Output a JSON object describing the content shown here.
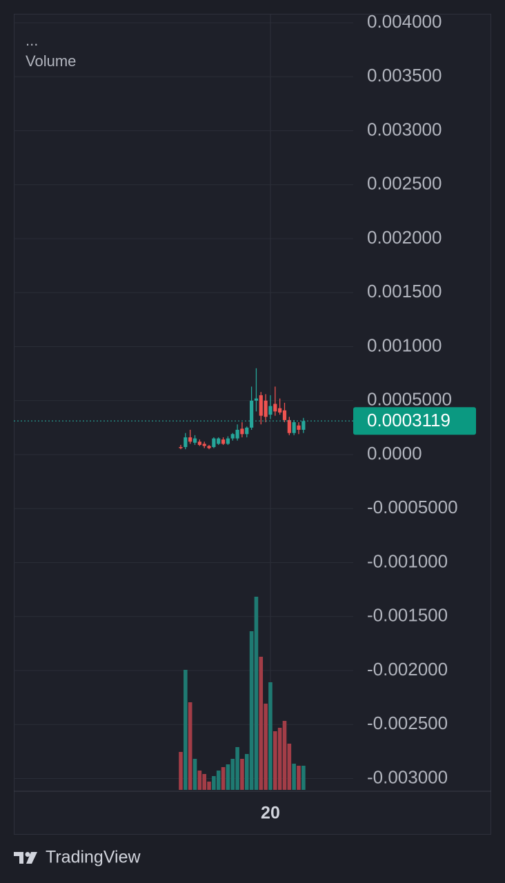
{
  "chart_data": {
    "type": "candlestick",
    "indicator_menu": "...",
    "indicator": "Volume",
    "brand": "TradingView",
    "categories": [
      null,
      null,
      null,
      null,
      null,
      null,
      null,
      null,
      null,
      null,
      null,
      null,
      null,
      null,
      null,
      null,
      null,
      null,
      null,
      "20",
      null,
      null,
      null,
      null,
      null,
      null,
      null
    ],
    "open": [
      7e-05,
      7e-05,
      0.00016,
      0.00011,
      0.00012,
      0.0001,
      8e-05,
      7e-05,
      0.0001,
      0.00014,
      0.0001,
      0.00015,
      0.00015,
      0.00024,
      0.00019,
      0.00025,
      0.0005,
      0.00055,
      0.0005,
      0.00037,
      0.00047,
      0.00043,
      0.00041,
      0.00032,
      0.0002,
      0.00027,
      0.00023
    ],
    "high": [
      9e-05,
      0.0002,
      0.00023,
      0.00018,
      0.00014,
      0.00012,
      9e-05,
      0.00016,
      0.00016,
      0.00016,
      0.00017,
      0.0002,
      0.00028,
      0.0003,
      0.00026,
      0.00063,
      0.0008,
      0.00058,
      0.00056,
      0.00055,
      0.00063,
      0.00052,
      0.00048,
      0.00035,
      0.00032,
      0.0003,
      0.00034
    ],
    "low": [
      5e-05,
      5e-05,
      0.0001,
      9e-05,
      8e-05,
      6e-05,
      5e-05,
      6e-05,
      9e-05,
      9e-05,
      9e-05,
      0.00013,
      0.00013,
      0.00016,
      0.00016,
      0.00023,
      0.0004,
      0.00028,
      0.0003,
      0.00033,
      0.00036,
      0.00037,
      0.0003,
      0.00018,
      0.00018,
      0.00019,
      0.0002
    ],
    "close": [
      6e-05,
      0.00016,
      0.00012,
      0.00015,
      9e-05,
      8e-05,
      6e-05,
      0.00015,
      0.00015,
      0.0001,
      0.00015,
      0.00019,
      0.00023,
      0.00019,
      0.00025,
      0.0005,
      0.00052,
      0.00036,
      0.00035,
      0.00045,
      0.0004,
      0.00039,
      0.00032,
      0.0002,
      0.0003,
      0.00023,
      0.00031
    ],
    "volume": [
      55,
      174,
      127,
      45,
      28,
      23,
      12,
      20,
      28,
      33,
      37,
      45,
      62,
      45,
      52,
      230,
      280,
      193,
      125,
      156,
      85,
      90,
      100,
      67,
      38,
      35,
      35
    ],
    "up_color": "#26a69a",
    "down_color": "#ef5350",
    "up_volume_color": "#1f7a72",
    "down_volume_color": "#a33d47",
    "last_price": 0.0003119,
    "ylim": [
      -0.003118,
      0.004083
    ],
    "yticks": [
      {
        "value": 0.004,
        "label": "0.004000"
      },
      {
        "value": 0.0035,
        "label": "0.003500"
      },
      {
        "value": 0.003,
        "label": "0.003000"
      },
      {
        "value": 0.0025,
        "label": "0.002500"
      },
      {
        "value": 0.002,
        "label": "0.002000"
      },
      {
        "value": 0.0015,
        "label": "0.001500"
      },
      {
        "value": 0.001,
        "label": "0.001000"
      },
      {
        "value": 0.0005,
        "label": "0.0005000"
      },
      {
        "value": 0,
        "label": "0.0000"
      },
      {
        "value": -0.0005,
        "label": "-0.0005000"
      },
      {
        "value": -0.001,
        "label": "-0.001000"
      },
      {
        "value": -0.0015,
        "label": "-0.001500"
      },
      {
        "value": -0.002,
        "label": "-0.002000"
      },
      {
        "value": -0.0025,
        "label": "-0.002500"
      },
      {
        "value": -0.003,
        "label": "-0.003000"
      }
    ],
    "grid": true
  }
}
